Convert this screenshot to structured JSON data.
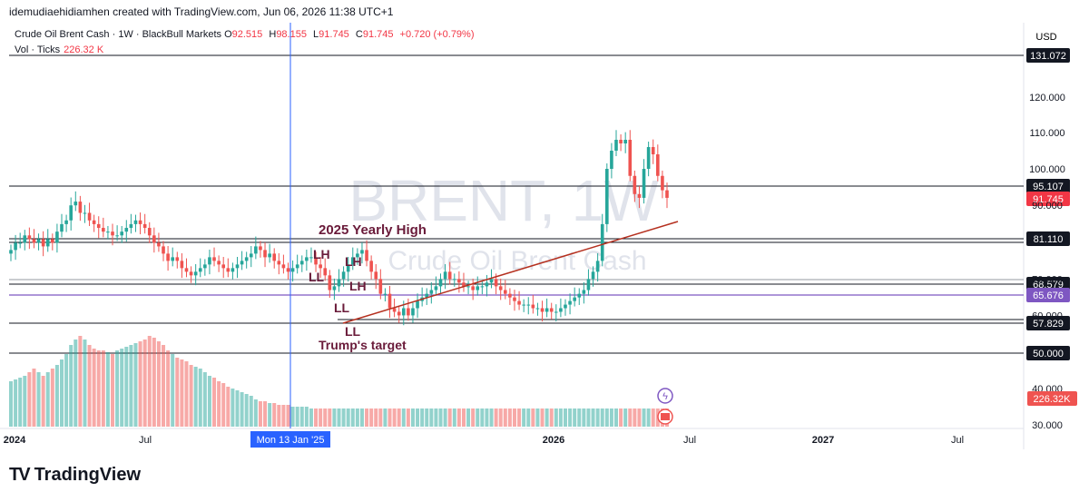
{
  "header": {
    "credit": "idemudiaehidiamhen created with TradingView.com, Jun 06, 2026 11:38 UTC+1"
  },
  "legend": {
    "symbol": "Crude Oil Brent Cash · 1W · BlackBull Markets",
    "o_label": "O",
    "o_value": "92.515",
    "h_label": "H",
    "h_value": "98.155",
    "l_label": "L",
    "l_value": "91.745",
    "c_label": "C",
    "c_value": "91.745",
    "change": "+0.720 (+0.79%)",
    "vol_label": "Vol · Ticks",
    "vol_value": "226.32 K"
  },
  "watermark": {
    "ticker": "BRENT, 1W",
    "name": "Crude Oil Brent Cash"
  },
  "currency": "USD",
  "footer": {
    "brand": "TradingView",
    "logo": "TV"
  },
  "colors": {
    "up": "#26a69a",
    "down": "#ef5350",
    "trend": "#b5301f",
    "annot": "#6a1b3a",
    "purple": "#7e57c2",
    "crosshair": "#2962ff"
  },
  "chart_data": {
    "type": "candlestick",
    "timeframe": "1W",
    "x_ticks": [
      "2024",
      "Jul",
      "2026",
      "Jul",
      "2027",
      "Jul"
    ],
    "crosshair_label": "Mon 13 Jan '25",
    "y_ticks": [
      30,
      40,
      60,
      70,
      90,
      100,
      110,
      120
    ],
    "y_tick_labels": [
      "30.000",
      "40.000",
      "60.000",
      "70.000",
      "90.000",
      "100.000",
      "110.000",
      "120.000"
    ],
    "levels": [
      {
        "value": 131.072,
        "label": "131.072",
        "style": "box-dark"
      },
      {
        "value": 95.107,
        "label": "95.107",
        "style": "box-dark"
      },
      {
        "value": 91.745,
        "label": "91.745",
        "style": "box-red"
      },
      {
        "value": 81.11,
        "label": "81.110",
        "style": "box-dark"
      },
      {
        "value": 68.579,
        "label": "68.579",
        "style": "box-dark"
      },
      {
        "value": 65.676,
        "label": "65.676",
        "style": "box-purple"
      },
      {
        "value": 57.829,
        "label": "57.829",
        "style": "box-dark"
      },
      {
        "value": 50.0,
        "label": "50.000",
        "style": "box-dark"
      }
    ],
    "volume_label": "226.32K",
    "closes": [
      78,
      80,
      80,
      82,
      81,
      80,
      81,
      79,
      81,
      80,
      83,
      85,
      86,
      90,
      91,
      88,
      88,
      86,
      85,
      84,
      83,
      83,
      82,
      82,
      83,
      84,
      85,
      86,
      85,
      84,
      82,
      80,
      79,
      77,
      75,
      76,
      75,
      73,
      72,
      71,
      72,
      73,
      74,
      76,
      75,
      74,
      73,
      72,
      73,
      74,
      75,
      76,
      77,
      79,
      78,
      76,
      77,
      75,
      74,
      73,
      72,
      73,
      74,
      75,
      76,
      76,
      74,
      73,
      71,
      67,
      68,
      70,
      72,
      74,
      76,
      77,
      78,
      75,
      72,
      70,
      66,
      66,
      62,
      61,
      60,
      62,
      60,
      62,
      64,
      65,
      66,
      67,
      68,
      70,
      72,
      70,
      70,
      69,
      68,
      68,
      67,
      68,
      68,
      69,
      70,
      68,
      67,
      66,
      65,
      64,
      63,
      63,
      63,
      62,
      62,
      61,
      62,
      61,
      61,
      62,
      63,
      64,
      65,
      66,
      67,
      70,
      72,
      75,
      85,
      100,
      105,
      108,
      107,
      108,
      98,
      93,
      92,
      100,
      106,
      104,
      98,
      94,
      92
    ],
    "volumes": [
      25,
      26,
      27,
      28,
      30,
      32,
      30,
      28,
      30,
      32,
      34,
      37,
      40,
      45,
      48,
      50,
      48,
      45,
      43,
      42,
      42,
      41,
      40,
      42,
      43,
      44,
      45,
      46,
      47,
      48,
      50,
      49,
      47,
      45,
      42,
      40,
      38,
      37,
      36,
      34,
      33,
      32,
      30,
      28,
      27,
      25,
      24,
      22,
      21,
      20,
      19,
      18,
      17,
      15,
      14,
      14,
      13,
      13,
      12,
      12,
      12,
      11,
      11,
      11,
      11,
      10,
      10,
      10,
      10,
      10,
      10,
      10,
      10,
      10,
      10,
      10,
      10,
      10,
      10,
      10,
      10,
      10,
      10,
      10,
      10,
      10,
      10,
      10,
      10,
      10,
      10,
      10,
      10,
      10,
      10,
      10,
      10,
      10,
      10,
      10,
      10,
      10,
      10,
      10,
      10,
      10,
      10,
      10,
      10,
      10,
      10,
      10,
      10,
      10,
      10,
      10,
      10,
      10,
      10,
      10,
      10,
      10,
      10,
      10,
      10,
      10,
      10,
      10,
      10,
      10,
      10,
      10,
      10,
      10,
      10,
      10,
      10,
      10,
      10,
      10,
      10,
      10,
      10
    ],
    "annotations": [
      {
        "text": "2025 Yearly High"
      },
      {
        "text": "LH"
      },
      {
        "text": "LH"
      },
      {
        "text": "LH"
      },
      {
        "text": "LL"
      },
      {
        "text": "LL"
      },
      {
        "text": "LL"
      },
      {
        "text": "Trump's target"
      }
    ]
  }
}
